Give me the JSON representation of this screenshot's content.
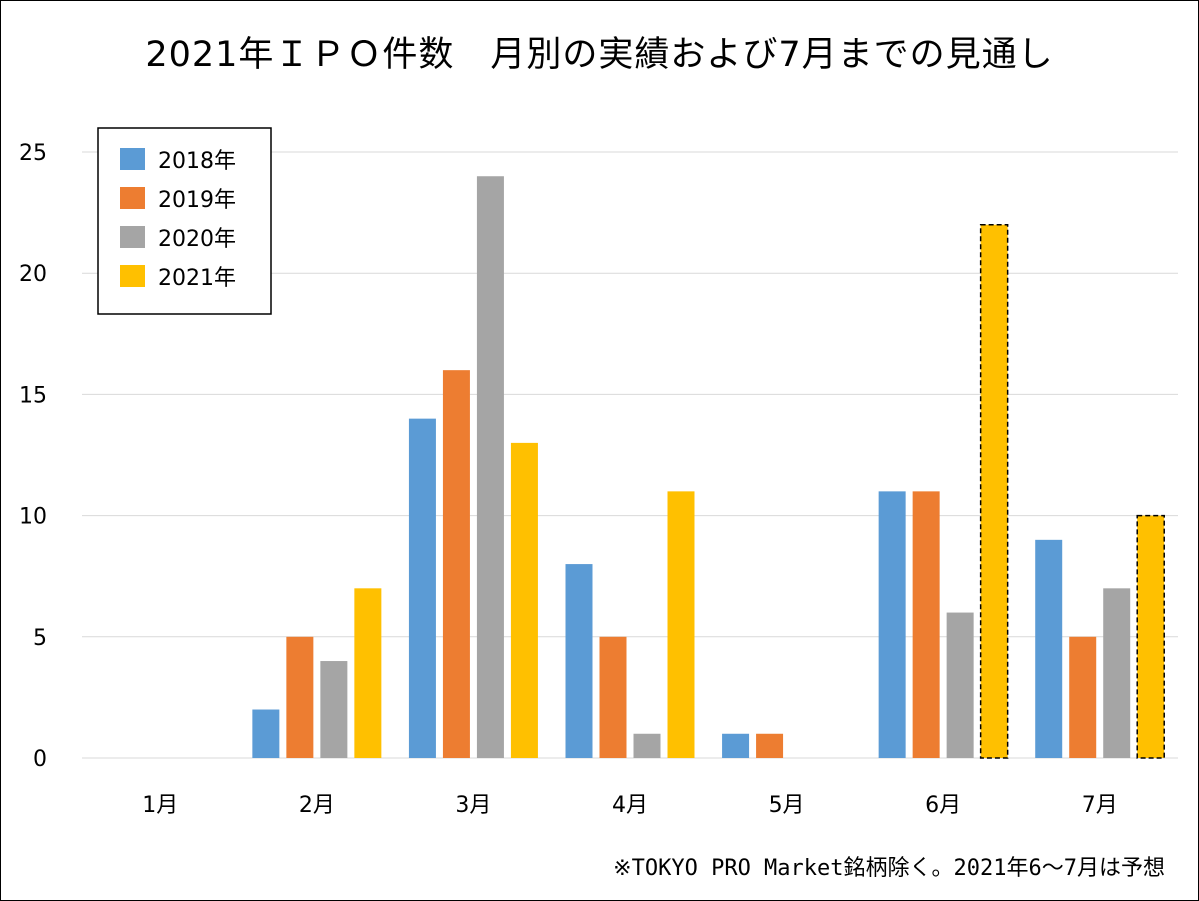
{
  "chart_data": {
    "type": "bar",
    "title": "2021年ＩＰＯ件数　月別の実績および7月までの見通し",
    "categories": [
      "1月",
      "2月",
      "3月",
      "4月",
      "5月",
      "6月",
      "7月"
    ],
    "series": [
      {
        "name": "2018年",
        "color": "#5B9BD5",
        "values": [
          0,
          2,
          14,
          8,
          1,
          11,
          9
        ]
      },
      {
        "name": "2019年",
        "color": "#ED7D31",
        "values": [
          0,
          5,
          16,
          5,
          1,
          11,
          5
        ]
      },
      {
        "name": "2020年",
        "color": "#A5A5A5",
        "values": [
          0,
          4,
          24,
          1,
          0,
          6,
          7
        ]
      },
      {
        "name": "2021年",
        "color": "#FFC000",
        "values": [
          0,
          7,
          13,
          11,
          0,
          22,
          10
        ]
      }
    ],
    "forecast": {
      "series": "2021年",
      "categories": [
        "6月",
        "7月"
      ],
      "style": "dashed-outline"
    },
    "yticks": [
      0,
      5,
      10,
      15,
      20,
      25
    ],
    "ylim": [
      0,
      25
    ],
    "grid": true,
    "legend_position": "top-left",
    "footnote": "※TOKYO PRO Market銘柄除く。2021年6〜7月は予想"
  }
}
